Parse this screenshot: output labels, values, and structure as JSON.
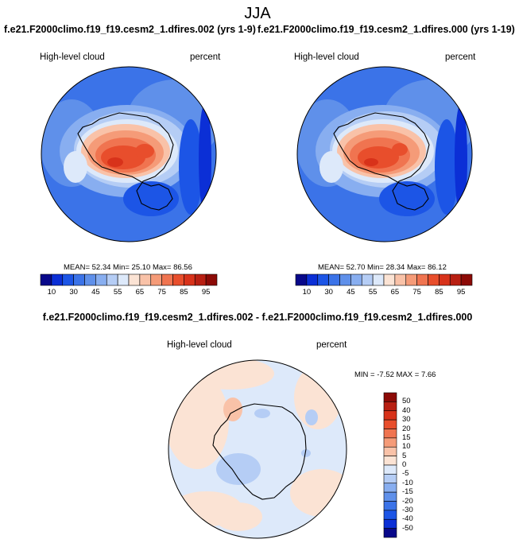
{
  "figure": {
    "title": "JJA",
    "diff_title": "f.e21.F2000climo.f19_f19.cesm2_1.dfires.002 - f.e21.F2000climo.f19_f19.cesm2_1.dfires.000"
  },
  "panels": [
    {
      "case_title": "f.e21.F2000climo.f19_f19.cesm2_1.dfires.002 (yrs 1-9)",
      "variable": "High-level cloud",
      "units": "percent",
      "stats_text": "MEAN= 52.34  Min= 25.10  Max= 86.56",
      "mean": 52.34,
      "min": 25.1,
      "max": 86.56
    },
    {
      "case_title": "f.e21.F2000climo.f19_f19.cesm2_1.dfires.000 (yrs 1-19)",
      "variable": "High-level cloud",
      "units": "percent",
      "stats_text": "MEAN= 52.70  Min= 28.34  Max= 86.12",
      "mean": 52.7,
      "min": 28.34,
      "max": 86.12
    },
    {
      "variable": "High-level cloud",
      "units": "percent",
      "stats_text": "MIN = -7.52 MAX =  7.66",
      "min": -7.52,
      "max": 7.66
    }
  ],
  "colorbar_abs": {
    "tick_labels": [
      "10",
      "30",
      "45",
      "55",
      "65",
      "75",
      "85",
      "95"
    ],
    "colors": [
      "#08088a",
      "#0b2fd6",
      "#1c55e6",
      "#3b73e8",
      "#5f90ea",
      "#88aef0",
      "#b5cdf5",
      "#dde9fa",
      "#fbe3d4",
      "#f9c2a8",
      "#f59b78",
      "#f07450",
      "#e84e2c",
      "#d8321a",
      "#b81f12",
      "#8c0a06"
    ]
  },
  "colorbar_diff": {
    "tick_labels": [
      "50",
      "40",
      "30",
      "20",
      "15",
      "10",
      "5",
      "0",
      "-5",
      "-10",
      "-15",
      "-20",
      "-30",
      "-40",
      "-50"
    ],
    "colors": [
      "#8c0a06",
      "#b81f12",
      "#d8321a",
      "#e84e2c",
      "#f07450",
      "#f59b78",
      "#f9c2a8",
      "#fbe3d4",
      "#dde9fa",
      "#b5cdf5",
      "#88aef0",
      "#5f90ea",
      "#3b73e8",
      "#1c55e6",
      "#0b2fd6",
      "#08088a"
    ]
  }
}
